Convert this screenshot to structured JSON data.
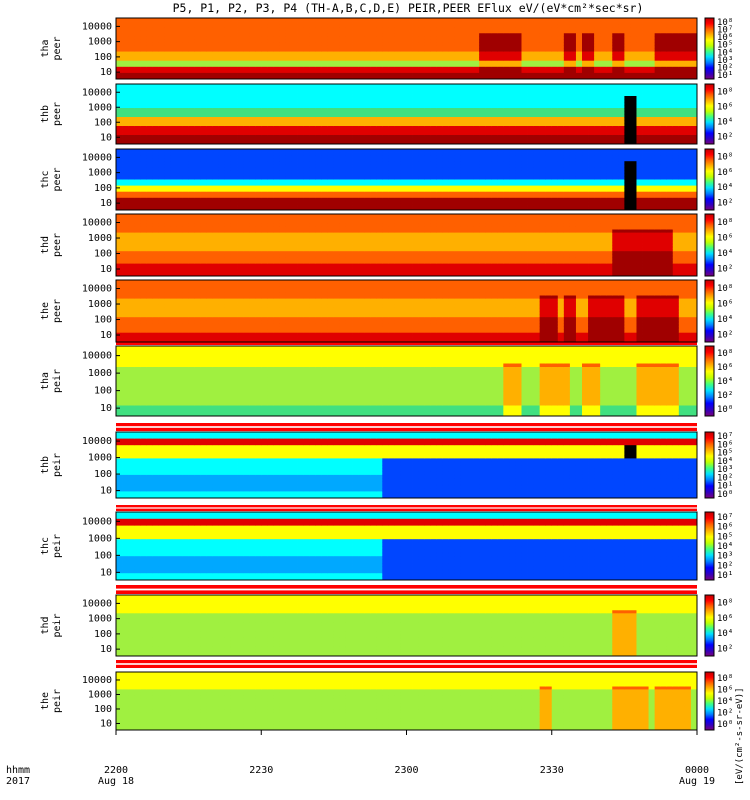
{
  "chart_data": {
    "type": "heatmap",
    "title": "P5, P1, P2, P3, P4 (TH-A,B,C,D,E) PEIR,PEER EFlux eV/(eV*cm²*sec*sr)",
    "colorbar_label": "[eV/(cm²-s-sr-eV)]",
    "time_axis": {
      "row_label_1": "hhmm",
      "row_label_2": "2017",
      "ticks": [
        {
          "time": "2200",
          "date": "Aug 18"
        },
        {
          "time": "2230",
          "date": ""
        },
        {
          "time": "2300",
          "date": ""
        },
        {
          "time": "2330",
          "date": ""
        },
        {
          "time": "0000",
          "date": "Aug 19"
        }
      ]
    },
    "energy_ticks": [
      "10000",
      "1000",
      "100",
      "10"
    ],
    "panels": [
      {
        "probe": "tha",
        "species": "peer",
        "cbar": [
          "10⁸",
          "10⁷",
          "10⁶",
          "10⁵",
          "10⁴",
          "10³",
          "10²",
          "10¹"
        ]
      },
      {
        "probe": "thb",
        "species": "peer",
        "cbar": [
          "10⁸",
          "10⁶",
          "10⁴",
          "10²"
        ]
      },
      {
        "probe": "thc",
        "species": "peer",
        "cbar": [
          "10⁸",
          "10⁶",
          "10⁴",
          "10²"
        ]
      },
      {
        "probe": "thd",
        "species": "peer",
        "cbar": [
          "10⁸",
          "10⁶",
          "10⁴",
          "10²"
        ]
      },
      {
        "probe": "the",
        "species": "peer",
        "cbar": [
          "10⁸",
          "10⁶",
          "10⁴",
          "10²"
        ]
      },
      {
        "probe": "tha",
        "species": "peir",
        "cbar": [
          "10⁸",
          "10⁶",
          "10⁴",
          "10²",
          "10⁰"
        ]
      },
      {
        "probe": "thb",
        "species": "peir",
        "cbar": [
          "10⁷",
          "10⁶",
          "10⁵",
          "10⁴",
          "10³",
          "10²",
          "10¹",
          "10⁰"
        ]
      },
      {
        "probe": "thc",
        "species": "peir",
        "cbar": [
          "10⁷",
          "10⁶",
          "10⁵",
          "10⁴",
          "10³",
          "10²",
          "10¹"
        ]
      },
      {
        "probe": "thd",
        "species": "peir",
        "cbar": [
          "10⁸",
          "10⁶",
          "10⁴",
          "10²"
        ]
      },
      {
        "probe": "the",
        "species": "peir",
        "cbar": [
          "10⁸",
          "10⁶",
          "10⁴",
          "10²",
          "10⁰"
        ]
      }
    ]
  }
}
